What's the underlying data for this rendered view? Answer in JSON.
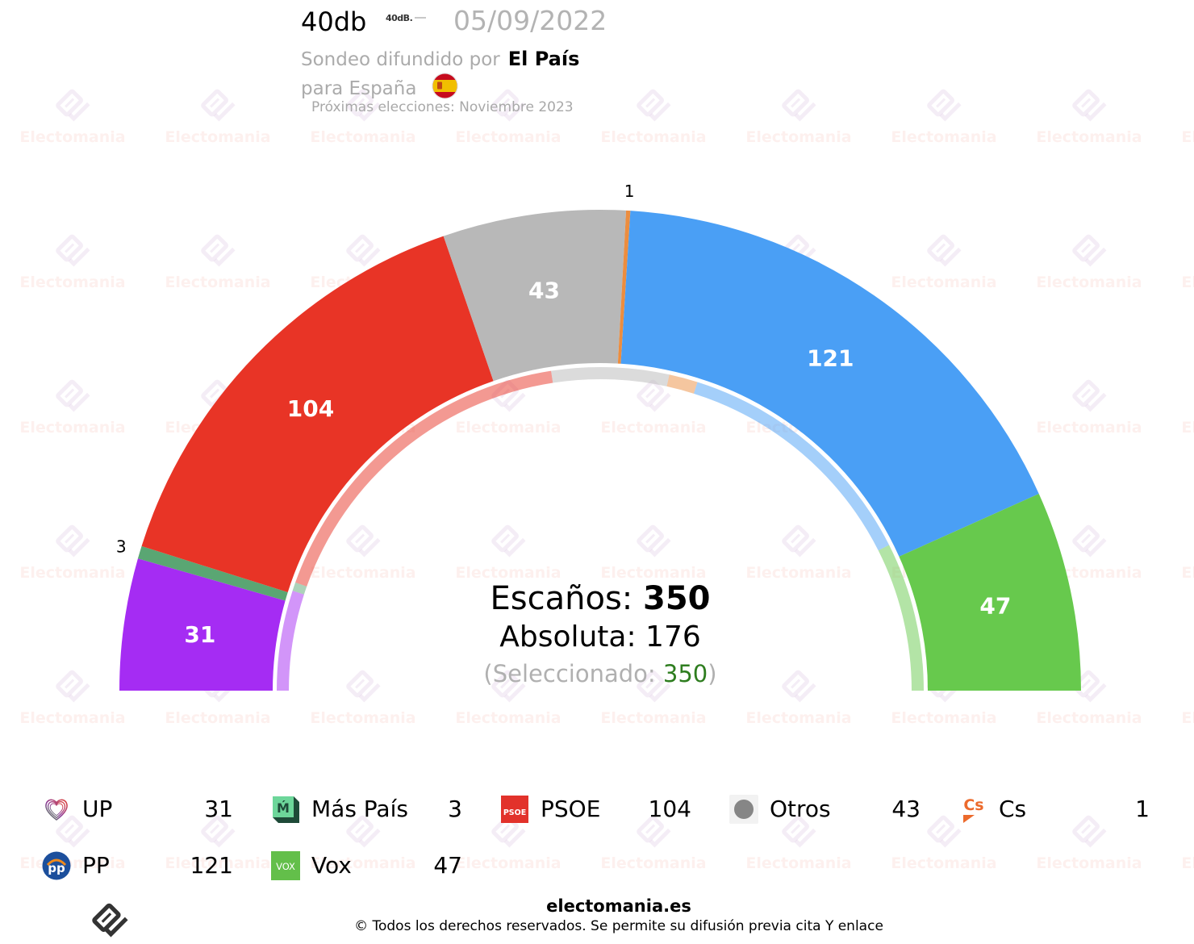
{
  "header": {
    "pollster": "40db",
    "pollster_logo_text": "40dB.",
    "date": "05/09/2022",
    "source_prefix": "Sondeo difundido por",
    "source_name": "El País",
    "region_prefix": "para España",
    "region_flag_icon": "spain-flag-icon",
    "next_elections": "Próximas elecciones: Noviembre 2023"
  },
  "summary": {
    "seats_label": "Escaños: ",
    "seats_value": "350",
    "majority_label": "Absoluta: ",
    "majority_value": "176",
    "selected_open": "(Seleccionado: ",
    "selected_value": "350",
    "selected_close": ")"
  },
  "chart_data": {
    "type": "pie",
    "variant": "half-donut (parliament semicircle)",
    "title": "",
    "categories": [
      "UP",
      "Más País",
      "PSOE",
      "Otros",
      "Cs",
      "PP",
      "Vox"
    ],
    "series": [
      {
        "name": "outer_ring",
        "values": [
          31,
          3,
          104,
          43,
          1,
          121,
          47
        ]
      },
      {
        "name": "inner_ring_estimated_unlabeled",
        "values": [
          35,
          3,
          120,
          41,
          10,
          89,
          52
        ]
      }
    ],
    "colors": [
      "#a52cf3",
      "#5aa673",
      "#e83426",
      "#b8b8b8",
      "#ec8d3f",
      "#4a9ff5",
      "#67c94d"
    ],
    "inner_ring_opacity": 0.5,
    "total": 350,
    "majority": 176,
    "selected": 350,
    "labels_outside": [
      "3",
      "1"
    ],
    "labels_inside": [
      "31",
      "104",
      "43",
      "121",
      "47"
    ]
  },
  "legend": {
    "items": [
      {
        "label": "UP",
        "value": "31",
        "icon": "up-heart-icon"
      },
      {
        "label": "Más País",
        "value": "3",
        "icon": "mas-pais-icon",
        "icon_text": "Ḿ"
      },
      {
        "label": "PSOE",
        "value": "104",
        "icon": "psoe-icon",
        "icon_text": "PSOE"
      },
      {
        "label": "Otros",
        "value": "43",
        "icon": "otros-circle-icon"
      },
      {
        "label": "Cs",
        "value": "1",
        "icon": "cs-icon",
        "icon_text": "Cs"
      },
      {
        "label": "PP",
        "value": "121",
        "icon": "pp-icon",
        "icon_text": "pp"
      },
      {
        "label": "Vox",
        "value": "47",
        "icon": "vox-icon",
        "icon_text": "VOX"
      }
    ]
  },
  "footer": {
    "site": "electomania.es",
    "copyright": "© Todos los derechos reservados. Se permite su difusión previa cita Y enlace",
    "logo_icon": "electomania-logo-icon"
  },
  "watermark": {
    "text": "Electomania",
    "icon": "electomania-logo-icon"
  }
}
